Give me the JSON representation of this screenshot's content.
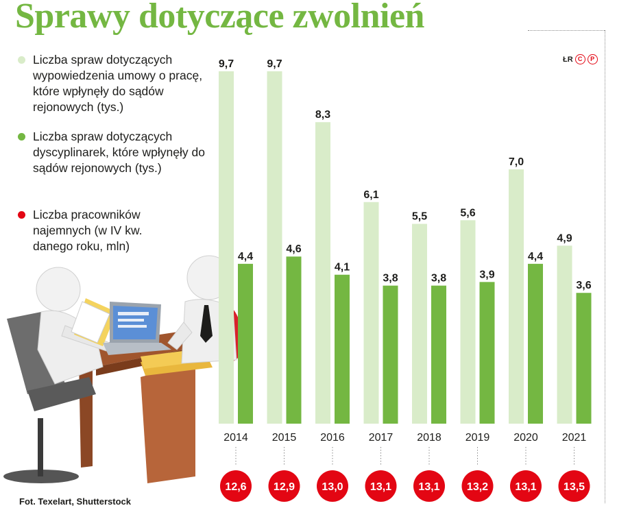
{
  "title": "Sprawy dotyczące zwolnień",
  "brand": {
    "text": "ŁR",
    "marks": [
      "C",
      "P"
    ]
  },
  "credit": "Fot. Texelart, Shutterstock",
  "legend": [
    {
      "label": "Liczba spraw dotyczących wypowiedzenia umowy o pracę, które wpłynęły do sądów rejonowych (tys.)",
      "color": "#d9ecc9"
    },
    {
      "label": "Liczba spraw dotyczących dyscyplinarek, które wpłynęły do sądów rejonowych (tys.)",
      "color": "#74b742"
    },
    {
      "label": "Liczba pracowników najemnych (w IV kw. danego roku, mln)",
      "color": "#e30613"
    }
  ],
  "chart_data": {
    "type": "bar",
    "categories": [
      "2014",
      "2015",
      "2016",
      "2017",
      "2018",
      "2019",
      "2020",
      "2021"
    ],
    "series": [
      {
        "name": "Liczba spraw dotyczących wypowiedzenia umowy o pracę, które wpłynęły do sądów rejonowych (tys.)",
        "values": [
          9.7,
          9.7,
          8.3,
          6.1,
          5.5,
          5.6,
          7.0,
          4.9
        ],
        "labels": [
          "9,7",
          "9,7",
          "8,3",
          "6,1",
          "5,5",
          "5,6",
          "7,0",
          "4,9"
        ],
        "color": "#d9ecc9"
      },
      {
        "name": "Liczba spraw dotyczących dyscyplinarek, które wpłynęły do sądów rejonowych (tys.)",
        "values": [
          4.4,
          4.6,
          4.1,
          3.8,
          3.8,
          3.9,
          4.4,
          3.6
        ],
        "labels": [
          "4,4",
          "4,6",
          "4,1",
          "3,8",
          "3,8",
          "3,9",
          "4,4",
          "3,6"
        ],
        "color": "#74b742"
      },
      {
        "name": "Liczba pracowników najemnych (w IV kw. danego roku, mln)",
        "values": [
          12.6,
          12.9,
          13.0,
          13.1,
          13.1,
          13.2,
          13.1,
          13.5
        ],
        "labels": [
          "12,6",
          "12,9",
          "13,0",
          "13,1",
          "13,1",
          "13,2",
          "13,1",
          "13,5"
        ],
        "color": "#e30613"
      }
    ],
    "ylim": [
      0,
      9.7
    ],
    "grid": false,
    "legend_position": "top-left"
  }
}
